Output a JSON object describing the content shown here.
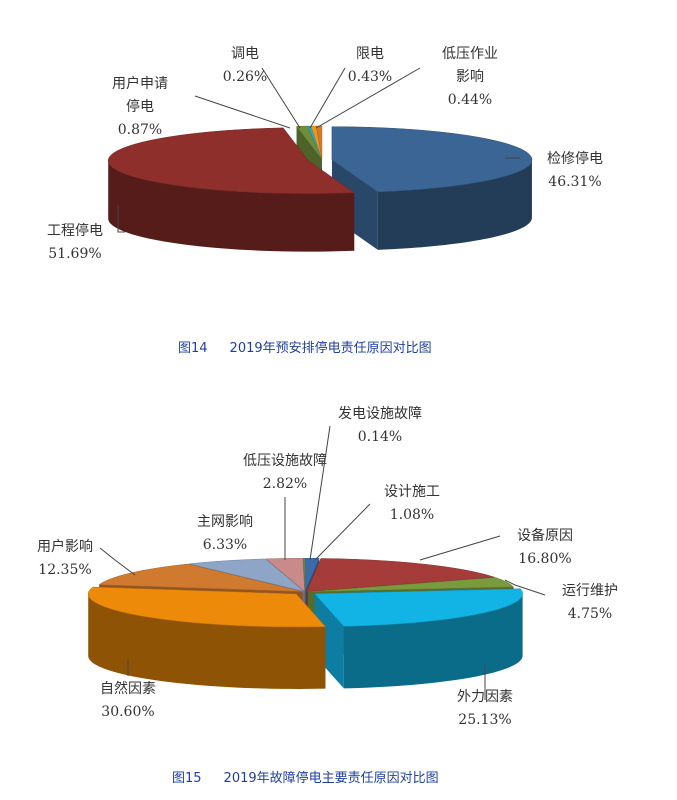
{
  "chart_data": [
    {
      "type": "pie",
      "style": "3d-exploded",
      "title": "2019年预安排停电责任原因对比图",
      "figure_no": "图14",
      "start": "12 o'clock, clockwise",
      "slices": [
        {
          "label": "检修停电",
          "value": 46.31,
          "pct": "46.31%",
          "color": "#3a6595"
        },
        {
          "label": "工程停电",
          "value": 51.69,
          "pct": "51.69%",
          "color": "#8e2f2c"
        },
        {
          "label": "用户申请\n停电",
          "value": 0.87,
          "pct": "0.87%",
          "color": "#6e8e3a"
        },
        {
          "label": "调电",
          "value": 0.26,
          "pct": "0.26%",
          "color": "#2ea3c9"
        },
        {
          "label": "限电",
          "value": 0.43,
          "pct": "0.43%",
          "color": "#e59a1c"
        },
        {
          "label": "低压作业\n影响",
          "value": 0.44,
          "pct": "0.44%",
          "color": "#d9782a"
        }
      ]
    },
    {
      "type": "pie",
      "style": "3d-exploded",
      "title": "2019年故障停电主要责任原因对比图",
      "figure_no": "图15",
      "start": "12 o'clock, clockwise",
      "slices": [
        {
          "label": "设计施工",
          "value": 1.08,
          "pct": "1.08%",
          "color": "#3d6aa8"
        },
        {
          "label": "设备原因",
          "value": 16.8,
          "pct": "16.80%",
          "color": "#a63c3a"
        },
        {
          "label": "运行维护",
          "value": 4.75,
          "pct": "4.75%",
          "color": "#7a9a3e"
        },
        {
          "label": "外力因素",
          "value": 25.13,
          "pct": "25.13%",
          "color": "#12b4e6"
        },
        {
          "label": "自然因素",
          "value": 30.6,
          "pct": "30.60%",
          "color": "#ee8a0a"
        },
        {
          "label": "用户影响",
          "value": 12.35,
          "pct": "12.35%",
          "color": "#d07a30"
        },
        {
          "label": "主网影响",
          "value": 6.33,
          "pct": "6.33%",
          "color": "#8ea5c8"
        },
        {
          "label": "低压设施故障",
          "value": 2.82,
          "pct": "2.82%",
          "color": "#c98a8a"
        },
        {
          "label": "发电设施故障",
          "value": 0.14,
          "pct": "0.14%",
          "color": "#6e8e3a"
        }
      ]
    }
  ]
}
